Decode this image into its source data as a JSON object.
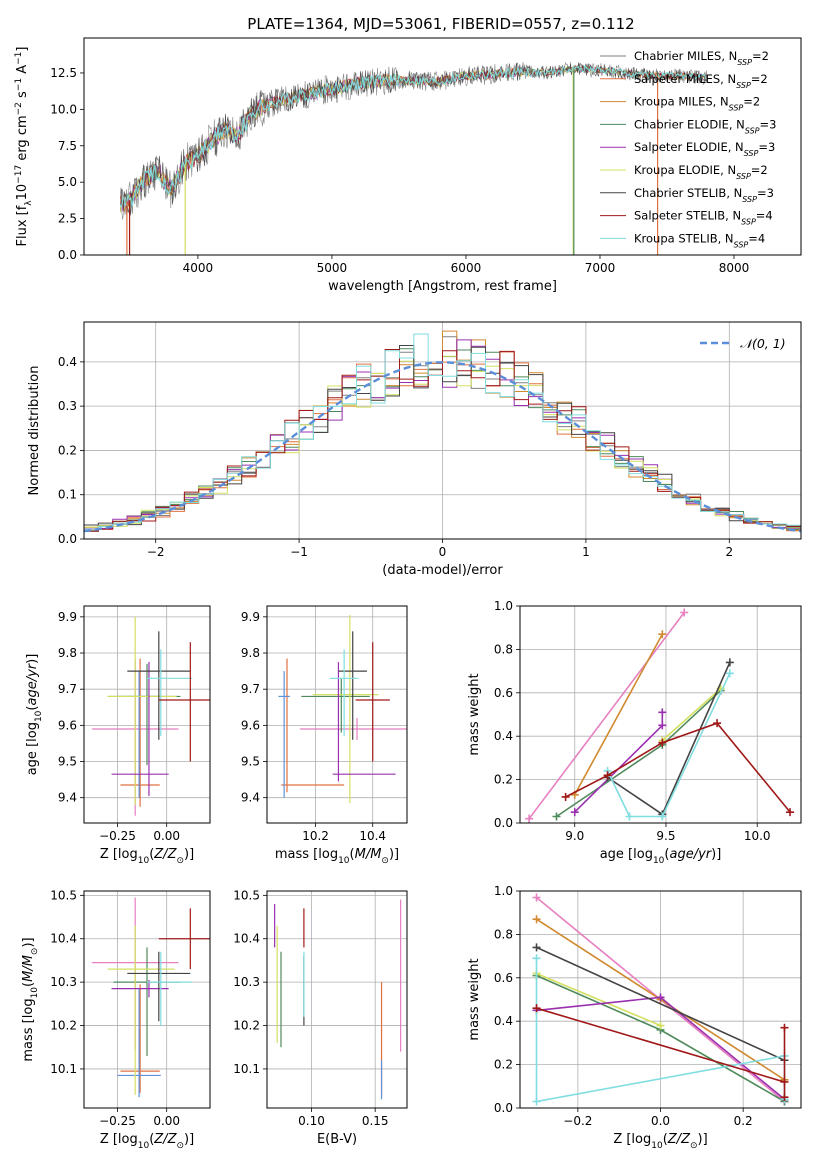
{
  "title": "PLATE=1364, MJD=53061, FIBERID=0557, z=0.112",
  "chart_data": [
    {
      "panel": "spectrum",
      "type": "line",
      "xlabel": "wavelength [Angstrom, rest frame]",
      "ylabel": "Flux [f_λ10^-17 erg cm^-2 s^-1 A^-1]",
      "xlim": [
        3150,
        8500
      ],
      "ylim": [
        0,
        14.9
      ],
      "xticks": [
        4000,
        5000,
        6000,
        7000,
        8000
      ],
      "yticks": [
        0.0,
        2.5,
        5.0,
        7.5,
        10.0,
        12.5
      ],
      "grid": false,
      "legend_position": "right",
      "series": [
        {
          "name": "Chabrier MILES, N_SSP=2",
          "color": "#808080"
        },
        {
          "name": "Salpeter MILES, N_SSP=2",
          "color": "#e07040"
        },
        {
          "name": "Kroupa MILES, N_SSP=2",
          "color": "#d08a30"
        },
        {
          "name": "Chabrier ELODIE, N_SSP=3",
          "color": "#4f8a5c"
        },
        {
          "name": "Salpeter ELODIE, N_SSP=3",
          "color": "#9a30b0"
        },
        {
          "name": "Kroupa ELODIE, N_SSP=2",
          "color": "#d4e060"
        },
        {
          "name": "Chabrier STELIB, N_SSP=3",
          "color": "#444444"
        },
        {
          "name": "Salpeter STELIB, N_SSP=4",
          "color": "#a01818"
        },
        {
          "name": "Kroupa STELIB, N_SSP=4",
          "color": "#80dde0"
        }
      ],
      "continuum_x": [
        3400,
        3500,
        3600,
        3700,
        3800,
        3900,
        4000,
        4100,
        4200,
        4300,
        4400,
        4600,
        4800,
        5000,
        5200,
        5400,
        5600,
        5800,
        6000,
        6200,
        6400,
        6600,
        6800,
        7000,
        7200,
        7400,
        7600,
        7800
      ],
      "continuum_y": [
        3.4,
        3.8,
        5.2,
        5.8,
        4.5,
        6.2,
        6.8,
        7.8,
        8.6,
        8.2,
        9.8,
        10.6,
        11.0,
        11.4,
        11.8,
        12.0,
        12.0,
        11.9,
        12.3,
        12.4,
        12.6,
        12.5,
        12.8,
        12.7,
        12.5,
        12.3,
        12.3,
        12.2
      ]
    },
    {
      "panel": "residual_histogram",
      "type": "bar",
      "xlabel": "(data-model)/error",
      "ylabel": "Normed distribution",
      "xlim": [
        -2.5,
        2.5
      ],
      "ylim": [
        0,
        0.49
      ],
      "xticks": [
        -2,
        -1,
        0,
        1,
        2
      ],
      "yticks": [
        0.0,
        0.1,
        0.2,
        0.3,
        0.4
      ],
      "grid": true,
      "legend_position": "top-right",
      "legend": "N(0,1)",
      "reference_curve": "gaussian mean 0 sigma 1",
      "bin_width": 0.1
    },
    {
      "panel": "Z_vs_age",
      "type": "scatter",
      "xlabel": "Z [log10(Z/Z_sun)]",
      "ylabel": "age [log10(age/yr)]",
      "xlim": [
        -0.42,
        0.22
      ],
      "ylim": [
        9.33,
        9.93
      ],
      "xticks": [
        -0.25,
        0.0
      ],
      "yticks": [
        9.4,
        9.5,
        9.6,
        9.7,
        9.8,
        9.9
      ],
      "grid": true,
      "points": [
        {
          "color": "#e77fc0",
          "x": -0.16,
          "xerr": [
            0.22,
            0.22
          ],
          "y": 9.59,
          "yerr": [
            0.24,
            0.19
          ]
        },
        {
          "color": "#e07040",
          "x": -0.135,
          "xerr": [
            0.1,
            0.1
          ],
          "y": 9.435,
          "yerr": [
            0.06,
            0.35
          ]
        },
        {
          "color": "#6090d8",
          "x": -0.14,
          "xerr": [
            0.11,
            0.11
          ],
          "y": 9.68,
          "yerr": [
            0.28,
            0.07
          ]
        },
        {
          "color": "#4f8a5c",
          "x": -0.1,
          "xerr": [
            0.2,
            0.17
          ],
          "y": 9.68,
          "yerr": [
            0.19,
            0.09
          ]
        },
        {
          "color": "#d4e060",
          "x": -0.16,
          "xerr": [
            0.14,
            0.21
          ],
          "y": 9.68,
          "yerr": [
            0.3,
            0.22
          ]
        },
        {
          "color": "#9a30b0",
          "x": -0.09,
          "xerr": [
            0.19,
            0.1
          ],
          "y": 9.465,
          "yerr": [
            0.06,
            0.31
          ]
        },
        {
          "color": "#444444",
          "x": -0.04,
          "xerr": [
            0.16,
            0.16
          ],
          "y": 9.75,
          "yerr": [
            0.19,
            0.11
          ]
        },
        {
          "color": "#80dde0",
          "x": -0.03,
          "xerr": [
            0.07,
            0.16
          ],
          "y": 9.73,
          "yerr": [
            0.16,
            0.08
          ]
        },
        {
          "color": "#a01818",
          "x": 0.12,
          "xerr": [
            0.16,
            0.16
          ],
          "y": 9.67,
          "yerr": [
            0.17,
            0.16
          ]
        }
      ]
    },
    {
      "panel": "mass_vs_age",
      "type": "scatter",
      "xlabel": "mass [log10(M/M_sun)]",
      "ylabel": "",
      "xlim": [
        10.03,
        10.52
      ],
      "ylim": [
        9.33,
        9.93
      ],
      "xticks": [
        10.2,
        10.4
      ],
      "yticks": [
        9.4,
        9.5,
        9.6,
        9.7,
        9.8,
        9.9
      ],
      "grid": true,
      "points": [
        {
          "color": "#e77fc0",
          "x": 10.345,
          "xerr": [
            0.2,
            0.2
          ],
          "y": 9.59,
          "yerr": [
            0.03,
            0.03
          ]
        },
        {
          "color": "#e07040",
          "x": 10.1,
          "xerr": [
            0.02,
            0.2
          ],
          "y": 9.435,
          "yerr": [
            0.02,
            0.35
          ]
        },
        {
          "color": "#6090d8",
          "x": 10.09,
          "xerr": [
            0.02,
            0.02
          ],
          "y": 9.68,
          "yerr": [
            0.28,
            0.07
          ]
        },
        {
          "color": "#4f8a5c",
          "x": 10.29,
          "xerr": [
            0.14,
            0.1
          ],
          "y": 9.68,
          "yerr": [
            0.1,
            0.05
          ]
        },
        {
          "color": "#d4e060",
          "x": 10.32,
          "xerr": [
            0.13,
            0.1
          ],
          "y": 9.685,
          "yerr": [
            0.3,
            0.22
          ]
        },
        {
          "color": "#9a30b0",
          "x": 10.28,
          "xerr": [
            0.02,
            0.2
          ],
          "y": 9.465,
          "yerr": [
            0.02,
            0.31
          ]
        },
        {
          "color": "#444444",
          "x": 10.33,
          "xerr": [
            0.05,
            0.05
          ],
          "y": 9.75,
          "yerr": [
            0.19,
            0.11
          ]
        },
        {
          "color": "#80dde0",
          "x": 10.3,
          "xerr": [
            0.05,
            0.05
          ],
          "y": 9.73,
          "yerr": [
            0.16,
            0.08
          ]
        },
        {
          "color": "#a01818",
          "x": 10.4,
          "xerr": [
            0.06,
            0.06
          ],
          "y": 9.67,
          "yerr": [
            0.17,
            0.16
          ]
        }
      ]
    },
    {
      "panel": "age_vs_massweight",
      "type": "line",
      "xlabel": "age [log10(age/yr)]",
      "ylabel": "mass weight",
      "xlim": [
        8.7,
        10.24
      ],
      "ylim": [
        0.0,
        1.0
      ],
      "xticks": [
        9.0,
        9.5,
        10.0
      ],
      "yticks": [
        0.0,
        0.2,
        0.4,
        0.6,
        0.8,
        1.0
      ],
      "grid": true,
      "series": [
        {
          "color": "#e77fc0",
          "x": [
            8.75,
            9.6
          ],
          "y": [
            0.02,
            0.97
          ]
        },
        {
          "color": "#d08a30",
          "x": [
            9.0,
            9.48
          ],
          "y": [
            0.13,
            0.87
          ]
        },
        {
          "color": "#4f8a5c",
          "x": [
            8.9,
            9.48,
            9.8
          ],
          "y": [
            0.03,
            0.36,
            0.61
          ]
        },
        {
          "color": "#d4e060",
          "x": [
            9.48,
            9.8
          ],
          "y": [
            0.38,
            0.62
          ]
        },
        {
          "color": "#9a30b0",
          "x": [
            9.0,
            9.48,
            9.48
          ],
          "y": [
            0.05,
            0.45,
            0.51
          ]
        },
        {
          "color": "#444444",
          "x": [
            9.18,
            9.48,
            9.85
          ],
          "y": [
            0.21,
            0.04,
            0.74
          ]
        },
        {
          "color": "#80dde0",
          "x": [
            9.18,
            9.3,
            9.48,
            9.85
          ],
          "y": [
            0.24,
            0.03,
            0.03,
            0.69
          ]
        },
        {
          "color": "#a01818",
          "x": [
            8.95,
            9.18,
            9.48,
            9.78,
            10.18
          ],
          "y": [
            0.12,
            0.22,
            0.37,
            0.46,
            0.05
          ]
        }
      ]
    },
    {
      "panel": "Z_vs_mass",
      "type": "scatter",
      "xlabel": "Z [log10(Z/Z_sun)]",
      "ylabel": "mass [log10(M/M_sun)]",
      "xlim": [
        -0.42,
        0.22
      ],
      "ylim": [
        10.01,
        10.51
      ],
      "xticks": [
        -0.25,
        0.0
      ],
      "yticks": [
        10.1,
        10.2,
        10.3,
        10.4,
        10.5
      ],
      "grid": true,
      "points": [
        {
          "color": "#e77fc0",
          "x": -0.16,
          "xerr": [
            0.22,
            0.22
          ],
          "y": 10.345,
          "yerr": [
            0.2,
            0.15
          ]
        },
        {
          "color": "#e07040",
          "x": -0.135,
          "xerr": [
            0.1,
            0.1
          ],
          "y": 10.095,
          "yerr": [
            0.05,
            0.2
          ]
        },
        {
          "color": "#6090d8",
          "x": -0.14,
          "xerr": [
            0.11,
            0.11
          ],
          "y": 10.085,
          "yerr": [
            0.05,
            0.2
          ]
        },
        {
          "color": "#4f8a5c",
          "x": -0.1,
          "xerr": [
            0.17,
            0.17
          ],
          "y": 10.3,
          "yerr": [
            0.17,
            0.08
          ]
        },
        {
          "color": "#d4e060",
          "x": -0.16,
          "xerr": [
            0.14,
            0.2
          ],
          "y": 10.33,
          "yerr": [
            0.29,
            0.1
          ]
        },
        {
          "color": "#9a30b0",
          "x": -0.09,
          "xerr": [
            0.19,
            0.1
          ],
          "y": 10.285,
          "yerr": [
            0.02,
            0.02
          ]
        },
        {
          "color": "#444444",
          "x": -0.04,
          "xerr": [
            0.16,
            0.16
          ],
          "y": 10.32,
          "yerr": [
            0.11,
            0.05
          ]
        },
        {
          "color": "#80dde0",
          "x": -0.03,
          "xerr": [
            0.07,
            0.16
          ],
          "y": 10.3,
          "yerr": [
            0.1,
            0.07
          ]
        },
        {
          "color": "#a01818",
          "x": 0.12,
          "xerr": [
            0.16,
            0.16
          ],
          "y": 10.4,
          "yerr": [
            0.07,
            0.07
          ]
        }
      ]
    },
    {
      "panel": "EBV_vs_mass",
      "type": "scatter",
      "xlabel": "E(B-V)",
      "ylabel": "",
      "xlim": [
        0.065,
        0.175
      ],
      "ylim": [
        10.01,
        10.51
      ],
      "xticks": [
        0.1,
        0.15
      ],
      "yticks": [
        10.1,
        10.2,
        10.3,
        10.4,
        10.5
      ],
      "grid": true,
      "points": [
        {
          "color": "#9a30b0",
          "x": 0.071,
          "xerr": [
            0,
            0
          ],
          "y": 10.43,
          "yerr": [
            0.05,
            0.05
          ]
        },
        {
          "color": "#d4e060",
          "x": 0.073,
          "xerr": [
            0,
            0
          ],
          "y": 10.33,
          "yerr": [
            0.17,
            0.1
          ]
        },
        {
          "color": "#4f8a5c",
          "x": 0.076,
          "xerr": [
            0,
            0
          ],
          "y": 10.3,
          "yerr": [
            0.15,
            0.07
          ]
        },
        {
          "color": "#444444",
          "x": 0.094,
          "xerr": [
            0,
            0
          ],
          "y": 10.3,
          "yerr": [
            0.1,
            0.06
          ]
        },
        {
          "color": "#80dde0",
          "x": 0.094,
          "xerr": [
            0,
            0
          ],
          "y": 10.31,
          "yerr": [
            0.09,
            0.06
          ]
        },
        {
          "color": "#a01818",
          "x": 0.094,
          "xerr": [
            0,
            0
          ],
          "y": 10.43,
          "yerr": [
            0.05,
            0.04
          ]
        },
        {
          "color": "#e07040",
          "x": 0.155,
          "xerr": [
            0,
            0
          ],
          "y": 10.2,
          "yerr": [
            0.16,
            0.1
          ]
        },
        {
          "color": "#6090d8",
          "x": 0.155,
          "xerr": [
            0,
            0
          ],
          "y": 10.1,
          "yerr": [
            0.07,
            0.02
          ]
        },
        {
          "color": "#e77fc0",
          "x": 0.17,
          "xerr": [
            0,
            0
          ],
          "y": 10.35,
          "yerr": [
            0.21,
            0.14
          ]
        }
      ]
    },
    {
      "panel": "Z_vs_massweight",
      "type": "line",
      "xlabel": "Z [log10(Z/Z_sun)]",
      "ylabel": "mass weight",
      "xlim": [
        -0.34,
        0.34
      ],
      "ylim": [
        0.0,
        1.0
      ],
      "xticks": [
        -0.2,
        0.0,
        0.2
      ],
      "yticks": [
        0.0,
        0.2,
        0.4,
        0.6,
        0.8,
        1.0
      ],
      "grid": true,
      "series": [
        {
          "color": "#e77fc0",
          "x": [
            -0.3,
            0.0,
            0.3
          ],
          "y": [
            0.97,
            0.5,
            0.03
          ]
        },
        {
          "color": "#d08a30",
          "x": [
            -0.3,
            0.0,
            0.3
          ],
          "y": [
            0.87,
            0.5,
            0.13
          ]
        },
        {
          "color": "#4f8a5c",
          "x": [
            -0.3,
            0.0,
            0.3
          ],
          "y": [
            0.61,
            0.36,
            0.03
          ]
        },
        {
          "color": "#d4e060",
          "x": [
            -0.3,
            0.0
          ],
          "y": [
            0.62,
            0.38
          ]
        },
        {
          "color": "#9a30b0",
          "x": [
            -0.3,
            0.0,
            0.3
          ],
          "y": [
            0.45,
            0.51,
            0.04
          ]
        },
        {
          "color": "#444444",
          "x": [
            -0.3,
            0.3
          ],
          "y": [
            0.74,
            0.22
          ]
        },
        {
          "color": "#80dde0",
          "x": [
            -0.3,
            -0.3,
            0.3,
            0.3
          ],
          "y": [
            0.69,
            0.03,
            0.24,
            0.04
          ]
        },
        {
          "color": "#a01818",
          "x": [
            -0.3,
            0.3,
            0.3,
            0.3
          ],
          "y": [
            0.46,
            0.12,
            0.37,
            0.05
          ]
        }
      ]
    }
  ]
}
